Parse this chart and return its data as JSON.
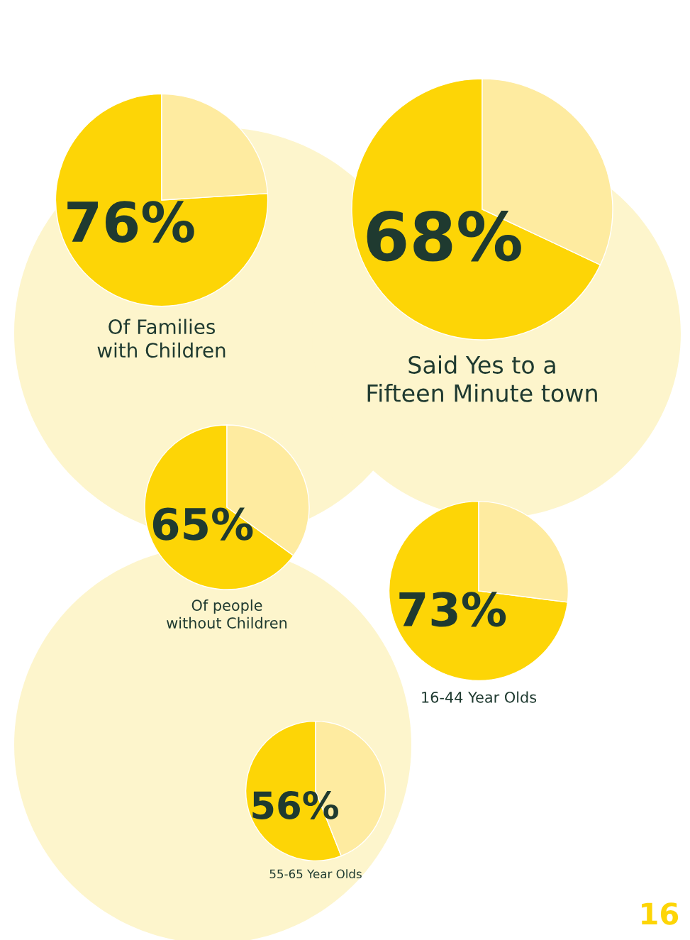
{
  "chart_data": [
    {
      "type": "pie",
      "title": "Of Families\nwith Children",
      "categories": [
        null,
        null
      ],
      "values": [
        76,
        24
      ],
      "colors": [
        "#fdd506",
        "#feeba0"
      ],
      "value_labels": [
        "76%",
        null
      ]
    },
    {
      "type": "pie",
      "title": "Said Yes to a\nFifteen Minute town",
      "categories": [
        null,
        null
      ],
      "values": [
        68,
        32
      ],
      "colors": [
        "#fdd506",
        "#feeba0"
      ],
      "value_labels": [
        "68%",
        null
      ]
    },
    {
      "type": "pie",
      "title": "Of people\nwithout Children",
      "categories": [
        null,
        null
      ],
      "values": [
        65,
        35
      ],
      "colors": [
        "#fdd506",
        "#feeba0"
      ],
      "value_labels": [
        "65%",
        null
      ]
    },
    {
      "type": "pie",
      "title": "16-44 Year Olds",
      "categories": [
        null,
        null
      ],
      "values": [
        73,
        27
      ],
      "colors": [
        "#fdd506",
        "#feeba0"
      ],
      "value_labels": [
        "73%",
        null
      ]
    },
    {
      "type": "pie",
      "title": "55-65 Year Olds",
      "categories": [
        null,
        null
      ],
      "values": [
        56,
        44
      ],
      "colors": [
        "#fdd506",
        "#feeba0"
      ],
      "value_labels": [
        "56%",
        null
      ],
      "annotations": [
        "16"
      ]
    }
  ]
}
